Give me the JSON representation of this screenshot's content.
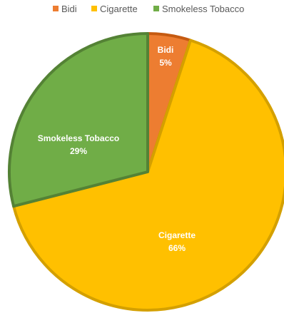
{
  "chart_data": {
    "type": "pie",
    "title": "",
    "legend_position": "top",
    "categories": [
      "Bidi",
      "Cigarette",
      "Smokeless Tobacco"
    ],
    "values": [
      5,
      66,
      29
    ],
    "value_labels": [
      "5%",
      "66%",
      "29%"
    ],
    "colors": [
      "#ED7D31",
      "#FFC000",
      "#70AD47"
    ],
    "border_colors": [
      "#C55A11",
      "#D4A000",
      "#548235"
    ],
    "start_angle_deg": 0,
    "direction": "clockwise"
  }
}
